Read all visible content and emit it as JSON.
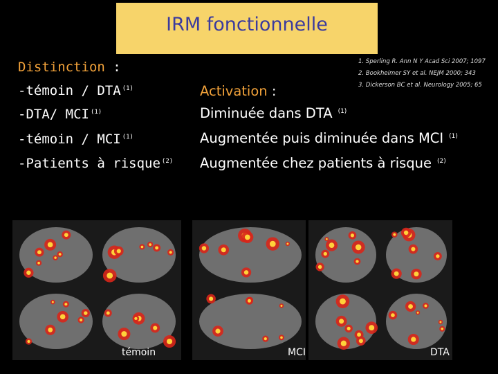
{
  "header": {
    "title": "IRM fonctionnelle"
  },
  "references": [
    "1. Sperling R. Ann N Y Acad Sci 2007; 1097",
    "2. Bookheimer SY et al. NEJM 2000; 343",
    "3. Dickerson BC et al. Neurology 2005; 65"
  ],
  "left": {
    "heading": "Distinction",
    "colon": ":",
    "items": [
      {
        "text": "-témoin / DTA",
        "ref": "(1)"
      },
      {
        "text": "-DTA/ MCI",
        "ref": "(1)"
      },
      {
        "text": "-témoin / MCI",
        "ref": "(1)"
      },
      {
        "text": "-Patients à risque",
        "ref": "(2)"
      }
    ]
  },
  "right": {
    "heading": "Activation",
    "colon": ":",
    "items": [
      {
        "text": "Diminuée dans DTA",
        "ref": "(1)"
      },
      {
        "text": "Augmentée puis diminuée dans MCI",
        "ref": "(1)"
      },
      {
        "text": "Augmentée chez patients à risque",
        "ref": "(2)"
      }
    ]
  },
  "images": [
    {
      "label": "témoin"
    },
    {
      "label": "MCI"
    },
    {
      "label": "DTA"
    }
  ]
}
